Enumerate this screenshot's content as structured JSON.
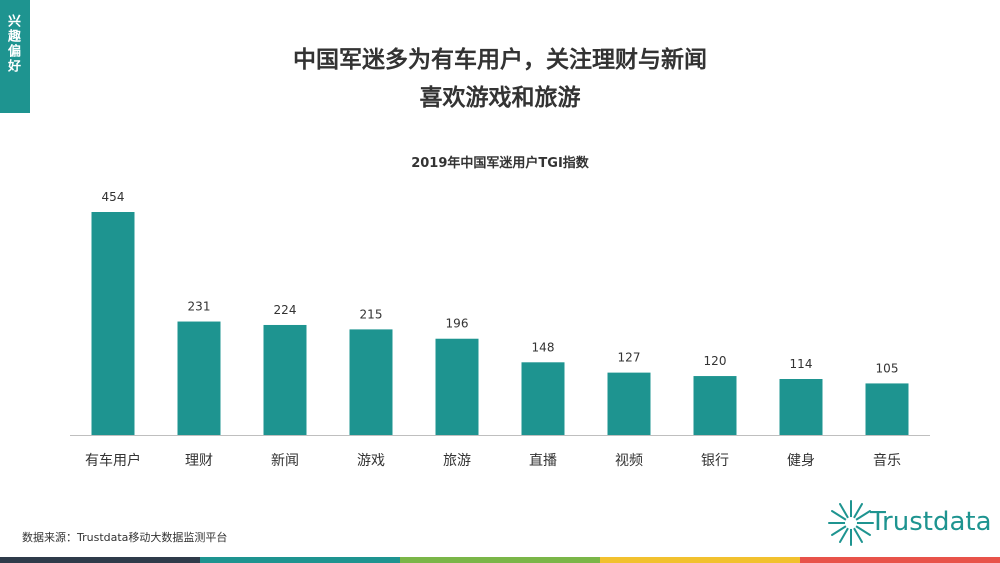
{
  "tag": {
    "label": "兴趣偏好"
  },
  "page": {
    "title_line1": "中国军迷多为有车用户，关注理财与新闻",
    "title_line2": "喜欢游戏和旅游",
    "source": "数据来源：Trustdata移动大数据监测平台",
    "logo_text": "Trustdata"
  },
  "colors": {
    "accent": "#1e9490",
    "stripes": [
      "#2e3b4a",
      "#1e9490",
      "#7ab648",
      "#f2c12e",
      "#e8534a"
    ]
  },
  "chart_data": {
    "type": "bar",
    "title": "2019年中国军迷用户TGI指数",
    "categories": [
      "有车用户",
      "理财",
      "新闻",
      "游戏",
      "旅游",
      "直播",
      "视频",
      "银行",
      "健身",
      "音乐"
    ],
    "values": [
      454,
      231,
      224,
      215,
      196,
      148,
      127,
      120,
      114,
      105
    ],
    "xlabel": "",
    "ylabel": "",
    "ylim": [
      0,
      454
    ],
    "grid": false,
    "legend": "none"
  }
}
